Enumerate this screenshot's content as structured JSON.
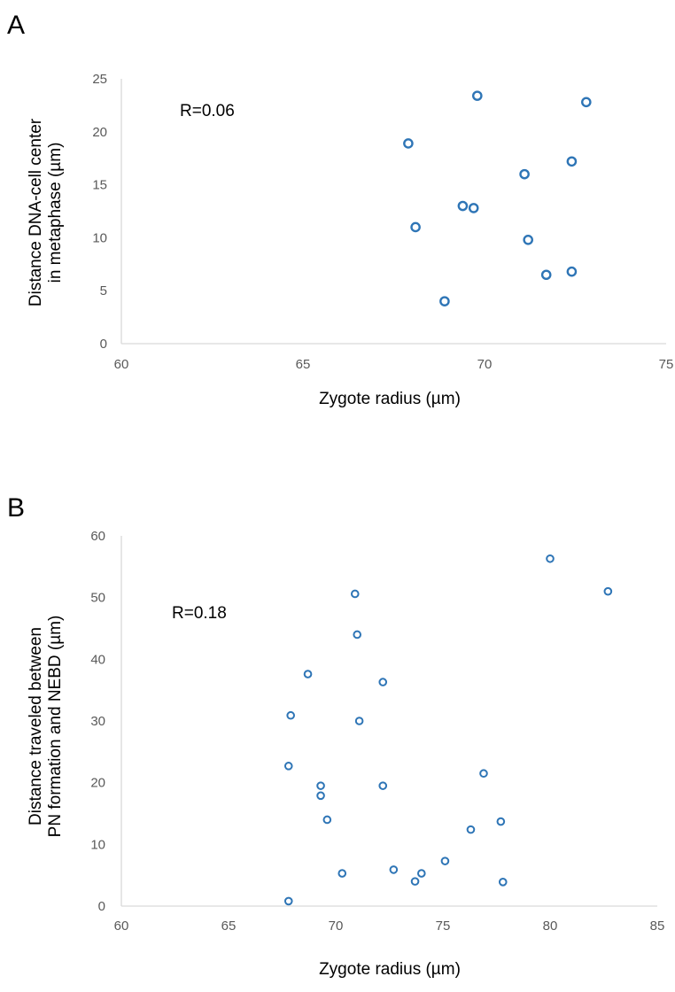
{
  "chart_data": [
    {
      "type": "scatter",
      "panel": "A",
      "xlabel": "Zygote radius (µm)",
      "ylabel": [
        "Distance DNA-cell center",
        "in metaphase (µm)"
      ],
      "xlim": [
        60,
        75
      ],
      "ylim": [
        0,
        25
      ],
      "xticks": [
        60,
        65,
        70,
        75
      ],
      "yticks": [
        0,
        5,
        10,
        15,
        20,
        25
      ],
      "annotation": "R=0.06",
      "grid": false,
      "marker_color": "#2e75b6",
      "points": [
        {
          "x": 67.9,
          "y": 18.9
        },
        {
          "x": 68.1,
          "y": 11.0
        },
        {
          "x": 68.9,
          "y": 4.0
        },
        {
          "x": 69.4,
          "y": 13.0
        },
        {
          "x": 69.7,
          "y": 12.8
        },
        {
          "x": 69.8,
          "y": 23.4
        },
        {
          "x": 71.1,
          "y": 16.0
        },
        {
          "x": 71.2,
          "y": 9.8
        },
        {
          "x": 71.7,
          "y": 6.5
        },
        {
          "x": 72.4,
          "y": 17.2
        },
        {
          "x": 72.4,
          "y": 6.8
        },
        {
          "x": 72.8,
          "y": 22.8
        }
      ]
    },
    {
      "type": "scatter",
      "panel": "B",
      "xlabel": "Zygote radius (µm)",
      "ylabel": [
        "Distance traveled between",
        "PN formation and NEBD (µm)"
      ],
      "xlim": [
        60,
        85
      ],
      "ylim": [
        0,
        60
      ],
      "xticks": [
        60,
        65,
        70,
        75,
        80,
        85
      ],
      "yticks": [
        0,
        10,
        20,
        30,
        40,
        50,
        60
      ],
      "annotation": "R=0.18",
      "grid": false,
      "marker_color": "#2e75b6",
      "points": [
        {
          "x": 67.8,
          "y": 0.8
        },
        {
          "x": 67.8,
          "y": 22.7
        },
        {
          "x": 67.9,
          "y": 30.9
        },
        {
          "x": 68.7,
          "y": 37.6
        },
        {
          "x": 69.3,
          "y": 19.5
        },
        {
          "x": 69.3,
          "y": 17.9
        },
        {
          "x": 69.6,
          "y": 14.0
        },
        {
          "x": 70.3,
          "y": 5.3
        },
        {
          "x": 70.9,
          "y": 50.6
        },
        {
          "x": 71.0,
          "y": 44.0
        },
        {
          "x": 71.1,
          "y": 30.0
        },
        {
          "x": 72.2,
          "y": 36.3
        },
        {
          "x": 72.2,
          "y": 19.5
        },
        {
          "x": 72.7,
          "y": 5.9
        },
        {
          "x": 73.7,
          "y": 4.0
        },
        {
          "x": 74.0,
          "y": 5.3
        },
        {
          "x": 75.1,
          "y": 7.3
        },
        {
          "x": 76.3,
          "y": 12.4
        },
        {
          "x": 76.9,
          "y": 21.5
        },
        {
          "x": 77.7,
          "y": 13.7
        },
        {
          "x": 77.8,
          "y": 3.9
        },
        {
          "x": 80.0,
          "y": 56.3
        },
        {
          "x": 82.7,
          "y": 51.0
        }
      ]
    }
  ]
}
